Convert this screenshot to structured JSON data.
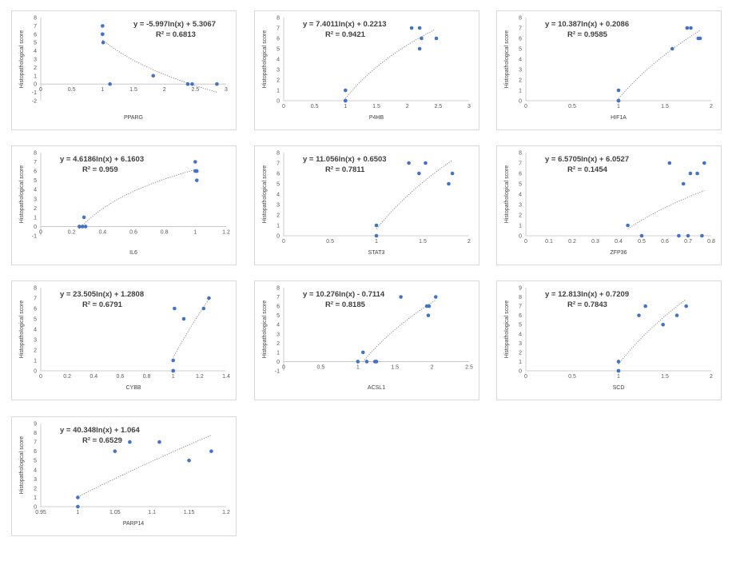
{
  "style": {
    "point_color": "#4472c4",
    "trend_color": "#7f7f7f",
    "axis_color": "#bfbfbf",
    "panel_border": "#d9d9d9"
  },
  "chart_data": [
    {
      "type": "scatter",
      "title": "",
      "xlabel": "PPARG",
      "ylabel": "Histopathological score",
      "xlim": [
        0,
        3
      ],
      "xticks": [
        0,
        0.5,
        1,
        1.5,
        2,
        2.5,
        3
      ],
      "xtick_labels": [
        "0",
        "0.5",
        "1",
        "1.5",
        "2",
        "2.5",
        "3"
      ],
      "ylim": [
        -2,
        8
      ],
      "yticks": [
        -2,
        -1,
        0,
        1,
        2,
        3,
        4,
        5,
        6,
        7,
        8
      ],
      "x": [
        1.0,
        1.0,
        1.0,
        1.01,
        1.12,
        1.82,
        2.38,
        2.45,
        2.85
      ],
      "y": [
        7,
        6,
        6,
        5,
        0,
        1,
        0,
        0,
        0
      ],
      "trendline": {
        "type": "log",
        "a": -5.997,
        "b": 5.3067,
        "x_range": [
          1.0,
          2.85
        ]
      },
      "equation": "y = -5.997ln(x) + 5.3067",
      "r2": "R² = 0.6813"
    },
    {
      "type": "scatter",
      "title": "",
      "xlabel": "P4HB",
      "ylabel": "Histopathological score",
      "xlim": [
        0,
        3
      ],
      "xticks": [
        0,
        0.5,
        1,
        1.5,
        2,
        2.5,
        3
      ],
      "xtick_labels": [
        "0",
        "0.5",
        "1",
        "1.5",
        "2",
        "2.5",
        "3"
      ],
      "ylim": [
        0,
        8
      ],
      "yticks": [
        0,
        1,
        2,
        3,
        4,
        5,
        6,
        7,
        8
      ],
      "x": [
        1.0,
        1.0,
        1.0,
        2.07,
        2.2,
        2.2,
        2.23,
        2.47
      ],
      "y": [
        1,
        0,
        0,
        7,
        7,
        5,
        6,
        6
      ],
      "trendline": {
        "type": "log",
        "a": 7.4011,
        "b": 0.2213,
        "x_range": [
          1.0,
          2.45
        ]
      },
      "equation": "y = 7.4011ln(x) + 0.2213",
      "r2": "R² = 0.9421"
    },
    {
      "type": "scatter",
      "title": "",
      "xlabel": "HIF1A",
      "ylabel": "Histopathological score",
      "xlim": [
        0,
        2
      ],
      "xticks": [
        0,
        0.5,
        1,
        1.5,
        2
      ],
      "xtick_labels": [
        "0",
        "0.5",
        "1",
        "1.5",
        "2"
      ],
      "ylim": [
        0,
        8
      ],
      "yticks": [
        0,
        1,
        2,
        3,
        4,
        5,
        6,
        7,
        8
      ],
      "x": [
        1.0,
        1.0,
        1.0,
        1.58,
        1.74,
        1.78,
        1.86,
        1.88
      ],
      "y": [
        1,
        0,
        0,
        5,
        7,
        7,
        6,
        6
      ],
      "trendline": {
        "type": "log",
        "a": 10.387,
        "b": 0.2086,
        "x_range": [
          1.0,
          1.88
        ]
      },
      "equation": "y = 10.387ln(x) + 0.2086",
      "r2": "R² = 0.9585"
    },
    {
      "type": "scatter",
      "title": "",
      "xlabel": "IL6",
      "ylabel": "Histopathological score",
      "xlim": [
        0,
        1.2
      ],
      "xticks": [
        0,
        0.2,
        0.4,
        0.6,
        0.8,
        1,
        1.2
      ],
      "xtick_labels": [
        "0",
        "0.2",
        "0.4",
        "0.6",
        "0.8",
        "1",
        "1.2"
      ],
      "ylim": [
        -1,
        8
      ],
      "yticks": [
        -1,
        0,
        1,
        2,
        3,
        4,
        5,
        6,
        7,
        8
      ],
      "x": [
        0.25,
        0.27,
        0.29,
        0.28,
        1.0,
        1.0,
        1.01,
        1.01
      ],
      "y": [
        0,
        0,
        0,
        1,
        7,
        6,
        6,
        5
      ],
      "trendline": {
        "type": "log",
        "a": 4.6186,
        "b": 6.1603,
        "x_range": [
          0.25,
          1.01
        ]
      },
      "equation": "y = 4.6186ln(x) + 6.1603",
      "r2": "R² = 0.959"
    },
    {
      "type": "scatter",
      "title": "",
      "xlabel": "STAT3",
      "ylabel": "Histopathological score",
      "xlim": [
        0,
        2
      ],
      "xticks": [
        0,
        0.5,
        1,
        1.5,
        2
      ],
      "xtick_labels": [
        "0",
        "0.5",
        "1",
        "1.5",
        "2"
      ],
      "ylim": [
        0,
        8
      ],
      "yticks": [
        0,
        1,
        2,
        3,
        4,
        5,
        6,
        7,
        8
      ],
      "x": [
        1.0,
        1.0,
        1.35,
        1.46,
        1.53,
        1.78,
        1.82
      ],
      "y": [
        1,
        0,
        7,
        6,
        7,
        5,
        6
      ],
      "trendline": {
        "type": "log",
        "a": 11.056,
        "b": 0.6503,
        "x_range": [
          1.0,
          1.82
        ]
      },
      "equation": "y = 11.056ln(x) + 0.6503",
      "r2": "R² = 0.7811"
    },
    {
      "type": "scatter",
      "title": "",
      "xlabel": "ZFP36",
      "ylabel": "Histopathological score",
      "xlim": [
        0,
        0.8
      ],
      "xticks": [
        0,
        0.1,
        0.2,
        0.3,
        0.4,
        0.5,
        0.6,
        0.7,
        0.8
      ],
      "xtick_labels": [
        "0",
        "0.1",
        "0.2",
        "0.3",
        "0.4",
        "0.5",
        "0.6",
        "0.7",
        "0.8"
      ],
      "ylim": [
        0,
        8
      ],
      "yticks": [
        0,
        1,
        2,
        3,
        4,
        5,
        6,
        7,
        8
      ],
      "x": [
        0.44,
        0.5,
        0.62,
        0.66,
        0.68,
        0.7,
        0.71,
        0.74,
        0.76,
        0.77
      ],
      "y": [
        1,
        0,
        7,
        0,
        5,
        0,
        6,
        6,
        0,
        7
      ],
      "trendline": {
        "type": "log",
        "a": 6.5705,
        "b": 6.0527,
        "x_range": [
          0.44,
          0.77
        ]
      },
      "equation": "y = 6.5705ln(x) + 6.0527",
      "r2": "R² = 0.1454"
    },
    {
      "type": "scatter",
      "title": "",
      "xlabel": "CYBB",
      "ylabel": "Histopathological score",
      "xlim": [
        0,
        1.4
      ],
      "xticks": [
        0,
        0.2,
        0.4,
        0.6,
        0.8,
        1,
        1.2,
        1.4
      ],
      "xtick_labels": [
        "0",
        "0.2",
        "0.4",
        "0.6",
        "0.8",
        "1",
        "1.2",
        "1.4"
      ],
      "ylim": [
        0,
        8
      ],
      "yticks": [
        0,
        1,
        2,
        3,
        4,
        5,
        6,
        7,
        8
      ],
      "x": [
        1.0,
        1.0,
        1.0,
        1.01,
        1.08,
        1.23,
        1.27
      ],
      "y": [
        1,
        0,
        0,
        6,
        5,
        6,
        7
      ],
      "trendline": {
        "type": "log",
        "a": 23.505,
        "b": 1.2808,
        "x_range": [
          1.0,
          1.27
        ]
      },
      "equation": "y = 23.505ln(x) + 1.2808",
      "r2": "R² = 0.6791"
    },
    {
      "type": "scatter",
      "title": "",
      "xlabel": "ACSL1",
      "ylabel": "Histopathological score",
      "xlim": [
        0,
        2.5
      ],
      "xticks": [
        0,
        0.5,
        1,
        1.5,
        2,
        2.5
      ],
      "xtick_labels": [
        "0",
        "0.5",
        "1",
        "1.5",
        "2",
        "2.5"
      ],
      "ylim": [
        -1,
        8
      ],
      "yticks": [
        -1,
        0,
        1,
        2,
        3,
        4,
        5,
        6,
        7,
        8
      ],
      "x": [
        1.0,
        1.07,
        1.12,
        1.23,
        1.25,
        1.58,
        1.93,
        1.96,
        1.95,
        2.05
      ],
      "y": [
        0,
        1,
        0,
        0,
        0,
        7,
        6,
        6,
        5,
        7
      ],
      "trendline": {
        "type": "log",
        "a": 10.276,
        "b": -0.7114,
        "x_range": [
          1.07,
          2.05
        ]
      },
      "equation": "y = 10.276ln(x) - 0.7114",
      "r2": "R² = 0.8185"
    },
    {
      "type": "scatter",
      "title": "",
      "xlabel": "SCD",
      "ylabel": "Histopathological score",
      "xlim": [
        0,
        2
      ],
      "xticks": [
        0,
        0.5,
        1,
        1.5,
        2
      ],
      "xtick_labels": [
        "0",
        "0.5",
        "1",
        "1.5",
        "2"
      ],
      "ylim": [
        0,
        9
      ],
      "yticks": [
        0,
        1,
        2,
        3,
        4,
        5,
        6,
        7,
        8,
        9
      ],
      "x": [
        1.0,
        1.0,
        1.0,
        1.22,
        1.29,
        1.48,
        1.63,
        1.73
      ],
      "y": [
        1,
        0,
        0,
        6,
        7,
        5,
        6,
        7
      ],
      "trendline": {
        "type": "log",
        "a": 12.813,
        "b": 0.7209,
        "x_range": [
          1.0,
          1.73
        ]
      },
      "equation": "y = 12.813ln(x) + 0.7209",
      "r2": "R² = 0.7843"
    },
    {
      "type": "scatter",
      "title": "",
      "xlabel": "PARP14",
      "ylabel": "Histopathological score",
      "xlim": [
        0.95,
        1.2
      ],
      "xticks": [
        0.95,
        1.0,
        1.05,
        1.1,
        1.15,
        1.2
      ],
      "xtick_labels": [
        "0.95",
        "1",
        "1.05",
        "1.1",
        "1.15",
        "1.2"
      ],
      "ylim": [
        0,
        9
      ],
      "yticks": [
        0,
        1,
        2,
        3,
        4,
        5,
        6,
        7,
        8,
        9
      ],
      "x": [
        1.0,
        1.0,
        1.05,
        1.07,
        1.11,
        1.15,
        1.18
      ],
      "y": [
        1,
        0,
        6,
        7,
        7,
        5,
        6
      ],
      "trendline": {
        "type": "log",
        "a": 40.348,
        "b": 1.064,
        "x_range": [
          1.0,
          1.18
        ]
      },
      "equation": "y = 40.348ln(x) + 1.064",
      "r2": "R² = 0.6529"
    }
  ]
}
